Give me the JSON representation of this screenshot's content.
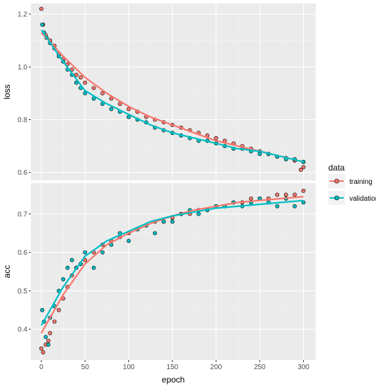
{
  "chart_data": [
    {
      "type": "scatter",
      "panel": "loss",
      "ylabel": "loss",
      "xlabel": "epoch",
      "xlim": [
        -12,
        314
      ],
      "ylim": [
        0.57,
        1.24
      ],
      "xticks": [
        0,
        50,
        100,
        150,
        200,
        250,
        300
      ],
      "yticks": [
        0.6,
        0.8,
        1.0,
        1.2
      ],
      "ytick_labels": [
        "0.6",
        "0.8",
        "1.0",
        "1.2"
      ],
      "grid": true,
      "series": [
        {
          "name": "training",
          "color": "#F8766D",
          "points": [
            [
              0,
              1.22
            ],
            [
              2,
              1.16
            ],
            [
              5,
              1.12
            ],
            [
              10,
              1.1
            ],
            [
              15,
              1.08
            ],
            [
              20,
              1.05
            ],
            [
              25,
              1.03
            ],
            [
              30,
              1.01
            ],
            [
              35,
              0.99
            ],
            [
              40,
              0.97
            ],
            [
              45,
              0.96
            ],
            [
              50,
              0.94
            ],
            [
              60,
              0.92
            ],
            [
              70,
              0.9
            ],
            [
              80,
              0.88
            ],
            [
              90,
              0.86
            ],
            [
              100,
              0.84
            ],
            [
              110,
              0.83
            ],
            [
              120,
              0.81
            ],
            [
              130,
              0.8
            ],
            [
              140,
              0.79
            ],
            [
              150,
              0.78
            ],
            [
              160,
              0.77
            ],
            [
              170,
              0.76
            ],
            [
              180,
              0.75
            ],
            [
              190,
              0.74
            ],
            [
              200,
              0.73
            ],
            [
              210,
              0.72
            ],
            [
              220,
              0.71
            ],
            [
              230,
              0.7
            ],
            [
              240,
              0.69
            ],
            [
              250,
              0.68
            ],
            [
              260,
              0.67
            ],
            [
              270,
              0.66
            ],
            [
              280,
              0.655
            ],
            [
              290,
              0.645
            ],
            [
              300,
              0.64
            ],
            [
              300,
              0.62
            ],
            [
              297,
              0.61
            ]
          ],
          "fit": [
            [
              0,
              1.13
            ],
            [
              25,
              1.04
            ],
            [
              50,
              0.96
            ],
            [
              75,
              0.9
            ],
            [
              100,
              0.85
            ],
            [
              125,
              0.81
            ],
            [
              150,
              0.78
            ],
            [
              175,
              0.75
            ],
            [
              200,
              0.72
            ],
            [
              225,
              0.7
            ],
            [
              250,
              0.68
            ],
            [
              275,
              0.66
            ],
            [
              300,
              0.64
            ]
          ]
        },
        {
          "name": "validation",
          "color": "#00BFC4",
          "points": [
            [
              1,
              1.16
            ],
            [
              3,
              1.13
            ],
            [
              6,
              1.11
            ],
            [
              10,
              1.09
            ],
            [
              15,
              1.07
            ],
            [
              20,
              1.04
            ],
            [
              25,
              1.02
            ],
            [
              30,
              0.99
            ],
            [
              35,
              0.97
            ],
            [
              40,
              0.94
            ],
            [
              45,
              0.92
            ],
            [
              50,
              0.9
            ],
            [
              60,
              0.88
            ],
            [
              70,
              0.86
            ],
            [
              80,
              0.84
            ],
            [
              90,
              0.83
            ],
            [
              100,
              0.81
            ],
            [
              110,
              0.8
            ],
            [
              120,
              0.79
            ],
            [
              130,
              0.77
            ],
            [
              140,
              0.76
            ],
            [
              150,
              0.75
            ],
            [
              160,
              0.74
            ],
            [
              170,
              0.73
            ],
            [
              180,
              0.72
            ],
            [
              190,
              0.72
            ],
            [
              200,
              0.71
            ],
            [
              210,
              0.7
            ],
            [
              220,
              0.69
            ],
            [
              230,
              0.69
            ],
            [
              240,
              0.68
            ],
            [
              250,
              0.67
            ],
            [
              260,
              0.67
            ],
            [
              270,
              0.66
            ],
            [
              280,
              0.65
            ],
            [
              290,
              0.65
            ],
            [
              300,
              0.64
            ]
          ],
          "fit": [
            [
              0,
              1.14
            ],
            [
              25,
              1.02
            ],
            [
              50,
              0.91
            ],
            [
              75,
              0.86
            ],
            [
              100,
              0.82
            ],
            [
              125,
              0.78
            ],
            [
              150,
              0.75
            ],
            [
              175,
              0.73
            ],
            [
              200,
              0.71
            ],
            [
              225,
              0.69
            ],
            [
              250,
              0.68
            ],
            [
              275,
              0.66
            ],
            [
              300,
              0.64
            ]
          ]
        }
      ]
    },
    {
      "type": "scatter",
      "panel": "acc",
      "ylabel": "acc",
      "xlabel": "epoch",
      "xlim": [
        -12,
        314
      ],
      "ylim": [
        0.32,
        0.78
      ],
      "xticks": [
        0,
        50,
        100,
        150,
        200,
        250,
        300
      ],
      "yticks": [
        0.4,
        0.5,
        0.6,
        0.7
      ],
      "ytick_labels": [
        "0.4",
        "0.5",
        "0.6",
        "0.7"
      ],
      "grid": true,
      "series": [
        {
          "name": "training",
          "color": "#F8766D",
          "points": [
            [
              0,
              0.35
            ],
            [
              2,
              0.34
            ],
            [
              5,
              0.36
            ],
            [
              8,
              0.37
            ],
            [
              10,
              0.39
            ],
            [
              15,
              0.42
            ],
            [
              20,
              0.45
            ],
            [
              25,
              0.48
            ],
            [
              30,
              0.51
            ],
            [
              35,
              0.54
            ],
            [
              40,
              0.56
            ],
            [
              45,
              0.57
            ],
            [
              50,
              0.58
            ],
            [
              60,
              0.6
            ],
            [
              70,
              0.62
            ],
            [
              80,
              0.63
            ],
            [
              90,
              0.64
            ],
            [
              100,
              0.65
            ],
            [
              110,
              0.66
            ],
            [
              120,
              0.67
            ],
            [
              130,
              0.68
            ],
            [
              140,
              0.68
            ],
            [
              150,
              0.69
            ],
            [
              160,
              0.7
            ],
            [
              170,
              0.7
            ],
            [
              180,
              0.71
            ],
            [
              190,
              0.71
            ],
            [
              200,
              0.72
            ],
            [
              210,
              0.72
            ],
            [
              220,
              0.73
            ],
            [
              230,
              0.73
            ],
            [
              240,
              0.74
            ],
            [
              250,
              0.74
            ],
            [
              260,
              0.74
            ],
            [
              270,
              0.75
            ],
            [
              280,
              0.75
            ],
            [
              290,
              0.75
            ],
            [
              300,
              0.76
            ]
          ],
          "fit": [
            [
              0,
              0.39
            ],
            [
              25,
              0.49
            ],
            [
              50,
              0.57
            ],
            [
              75,
              0.62
            ],
            [
              100,
              0.65
            ],
            [
              125,
              0.675
            ],
            [
              150,
              0.695
            ],
            [
              175,
              0.71
            ],
            [
              200,
              0.72
            ],
            [
              225,
              0.73
            ],
            [
              250,
              0.735
            ],
            [
              275,
              0.74
            ],
            [
              300,
              0.745
            ]
          ]
        },
        {
          "name": "validation",
          "color": "#00BFC4",
          "points": [
            [
              1,
              0.45
            ],
            [
              3,
              0.42
            ],
            [
              5,
              0.38
            ],
            [
              8,
              0.36
            ],
            [
              10,
              0.43
            ],
            [
              15,
              0.46
            ],
            [
              20,
              0.5
            ],
            [
              25,
              0.53
            ],
            [
              30,
              0.56
            ],
            [
              35,
              0.58
            ],
            [
              40,
              0.56
            ],
            [
              45,
              0.57
            ],
            [
              50,
              0.6
            ],
            [
              60,
              0.56
            ],
            [
              70,
              0.6
            ],
            [
              80,
              0.62
            ],
            [
              90,
              0.65
            ],
            [
              100,
              0.63
            ],
            [
              110,
              0.66
            ],
            [
              120,
              0.67
            ],
            [
              130,
              0.65
            ],
            [
              140,
              0.68
            ],
            [
              150,
              0.68
            ],
            [
              160,
              0.7
            ],
            [
              170,
              0.71
            ],
            [
              180,
              0.7
            ],
            [
              190,
              0.71
            ],
            [
              200,
              0.72
            ],
            [
              210,
              0.72
            ],
            [
              220,
              0.73
            ],
            [
              230,
              0.72
            ],
            [
              240,
              0.73
            ],
            [
              250,
              0.74
            ],
            [
              260,
              0.73
            ],
            [
              270,
              0.72
            ],
            [
              280,
              0.74
            ],
            [
              290,
              0.72
            ],
            [
              300,
              0.73
            ]
          ],
          "fit": [
            [
              0,
              0.41
            ],
            [
              25,
              0.51
            ],
            [
              50,
              0.59
            ],
            [
              75,
              0.63
            ],
            [
              100,
              0.655
            ],
            [
              125,
              0.68
            ],
            [
              150,
              0.695
            ],
            [
              175,
              0.705
            ],
            [
              200,
              0.715
            ],
            [
              225,
              0.72
            ],
            [
              250,
              0.725
            ],
            [
              275,
              0.73
            ],
            [
              300,
              0.735
            ]
          ]
        }
      ]
    }
  ],
  "legend": {
    "title": "data",
    "items": [
      {
        "label": "training",
        "color": "#F8766D"
      },
      {
        "label": "validation",
        "color": "#00BFC4"
      }
    ]
  },
  "xaxis_title": "epoch",
  "theme": {
    "panel_bg": "#EBEBEB",
    "grid_major": "#FFFFFF",
    "grid_minor": "#F5F5F5"
  }
}
